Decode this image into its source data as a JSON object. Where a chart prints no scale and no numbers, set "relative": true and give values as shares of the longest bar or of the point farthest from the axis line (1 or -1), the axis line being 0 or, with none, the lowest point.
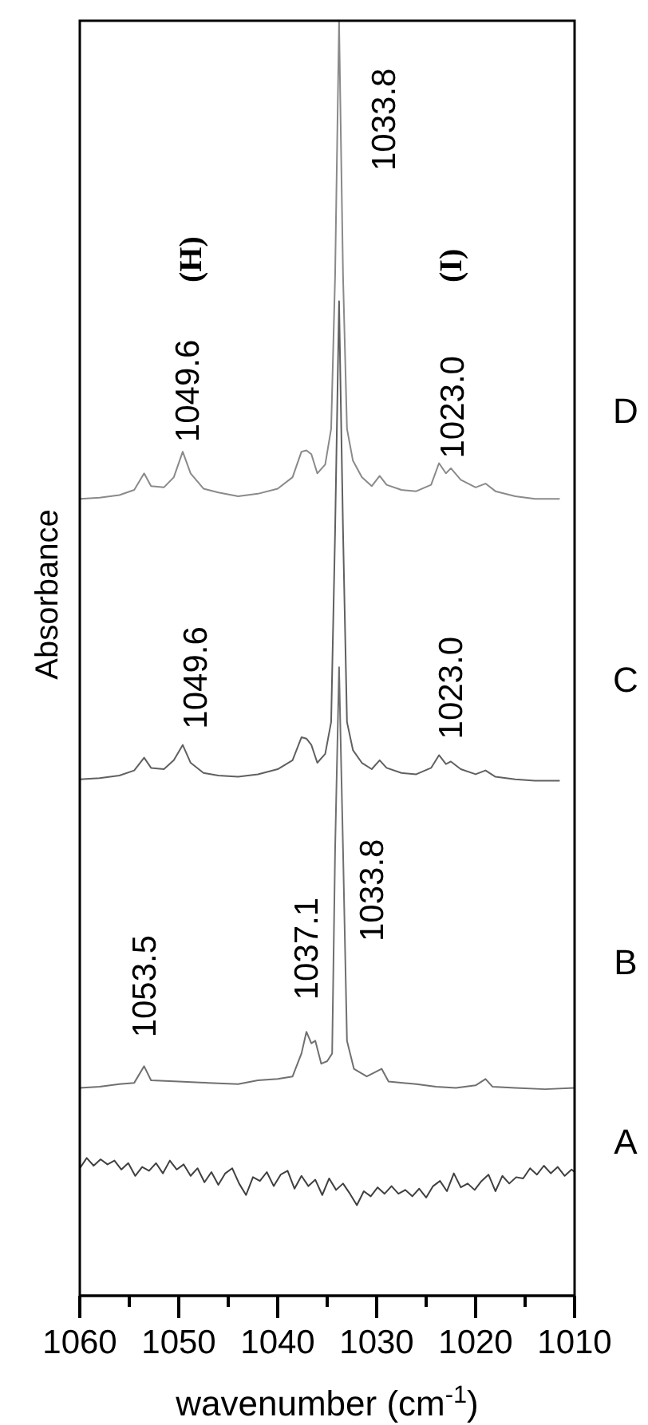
{
  "chart_data": {
    "type": "line",
    "relative": true,
    "xlabel": "wavenumber (cm$^{-1}$)",
    "ylabel": "Absorbance",
    "xlim": [
      1060,
      1010
    ],
    "xticks": [
      1060,
      {
        "value": 1055,
        "label": null
      },
      1050,
      {
        "value": 1045,
        "label": null
      },
      1040,
      {
        "value": 1035,
        "label": null
      },
      1030,
      {
        "value": 1025,
        "label": null
      },
      1020,
      {
        "value": 1015,
        "label": null
      },
      1010
    ],
    "grid": false,
    "legend": false,
    "series": [
      {
        "name": "A",
        "color": "#404040",
        "x": [
          1060,
          1059.3,
          1058.6,
          1057.9,
          1057.2,
          1056.5,
          1055.8,
          1055.1,
          1054.4,
          1053.7,
          1053,
          1052.3,
          1051.6,
          1050.9,
          1050.2,
          1049.5,
          1048.8,
          1048.1,
          1047.4,
          1046.7,
          1046,
          1045.3,
          1044.6,
          1043.9,
          1043.2,
          1042.5,
          1041.8,
          1041.1,
          1040.4,
          1039.7,
          1039,
          1038.3,
          1037.6,
          1036.9,
          1036.2,
          1035.5,
          1034.8,
          1034.1,
          1033.4,
          1032.7,
          1032,
          1031.3,
          1030.6,
          1029.9,
          1029.2,
          1028.5,
          1027.8,
          1027.1,
          1026.4,
          1025.7,
          1025,
          1024.3,
          1023.6,
          1022.9,
          1022.2,
          1021.5,
          1020.8,
          1020.1,
          1019.4,
          1018.7,
          1018,
          1017.3,
          1016.6,
          1015.9,
          1015.2,
          1014.5,
          1013.8,
          1013.1,
          1012.4,
          1011.7,
          1011,
          1010.3,
          1010
        ],
        "values": [
          0.1,
          0.108,
          0.102,
          0.107,
          0.103,
          0.106,
          0.099,
          0.104,
          0.094,
          0.101,
          0.098,
          0.104,
          0.096,
          0.106,
          0.099,
          0.103,
          0.094,
          0.1,
          0.089,
          0.097,
          0.087,
          0.096,
          0.1,
          0.088,
          0.079,
          0.093,
          0.09,
          0.097,
          0.086,
          0.095,
          0.098,
          0.084,
          0.094,
          0.086,
          0.091,
          0.079,
          0.092,
          0.083,
          0.088,
          0.08,
          0.071,
          0.082,
          0.078,
          0.085,
          0.08,
          0.086,
          0.08,
          0.083,
          0.078,
          0.084,
          0.077,
          0.086,
          0.09,
          0.082,
          0.096,
          0.085,
          0.088,
          0.083,
          0.09,
          0.095,
          0.082,
          0.094,
          0.088,
          0.093,
          0.092,
          0.1,
          0.095,
          0.102,
          0.096,
          0.101,
          0.094,
          0.099,
          0.097
        ]
      },
      {
        "name": "B",
        "color": "#707070",
        "x": [
          1060,
          1058,
          1056,
          1054.5,
          1053.5,
          1052.8,
          1050,
          1047,
          1044,
          1042,
          1040,
          1038.5,
          1037.6,
          1037.1,
          1036.6,
          1036.2,
          1035.6,
          1035,
          1034.5,
          1034.2,
          1033.8,
          1033.4,
          1033,
          1032.3,
          1031,
          1029.5,
          1028.8,
          1026,
          1024,
          1022,
          1020,
          1019,
          1018.3,
          1016,
          1013,
          1010
        ],
        "values": [
          0.163,
          0.164,
          0.166,
          0.167,
          0.18,
          0.169,
          0.168,
          0.167,
          0.166,
          0.169,
          0.17,
          0.172,
          0.19,
          0.207,
          0.198,
          0.2,
          0.182,
          0.184,
          0.19,
          0.35,
          0.493,
          0.35,
          0.2,
          0.178,
          0.172,
          0.178,
          0.168,
          0.166,
          0.164,
          0.163,
          0.165,
          0.17,
          0.164,
          0.163,
          0.162,
          0.163
        ]
      },
      {
        "name": "C",
        "color": "#606060",
        "x": [
          1060,
          1058,
          1056,
          1054.5,
          1053.5,
          1052.8,
          1051.5,
          1050.5,
          1049.6,
          1048.8,
          1047.5,
          1046,
          1044,
          1042,
          1040,
          1038.5,
          1037.6,
          1037.1,
          1036.6,
          1036,
          1035.2,
          1034.6,
          1034.2,
          1033.8,
          1033.4,
          1033,
          1032.4,
          1031.5,
          1030.5,
          1029.7,
          1029,
          1027.5,
          1026,
          1024.5,
          1023.7,
          1023,
          1022.5,
          1021.5,
          1020,
          1019,
          1018,
          1016,
          1014,
          1011.5
        ],
        "values": [
          0.405,
          0.406,
          0.408,
          0.412,
          0.422,
          0.414,
          0.413,
          0.42,
          0.432,
          0.418,
          0.41,
          0.408,
          0.407,
          0.409,
          0.413,
          0.42,
          0.438,
          0.437,
          0.432,
          0.418,
          0.425,
          0.45,
          0.6,
          0.78,
          0.6,
          0.45,
          0.428,
          0.418,
          0.413,
          0.42,
          0.414,
          0.41,
          0.409,
          0.414,
          0.424,
          0.417,
          0.419,
          0.413,
          0.409,
          0.412,
          0.407,
          0.405,
          0.404,
          0.404
        ]
      },
      {
        "name": "D",
        "color": "#8a8a8a",
        "x": [
          1060,
          1058,
          1056,
          1054.5,
          1053.5,
          1052.8,
          1051.5,
          1050.5,
          1049.6,
          1048.8,
          1047.5,
          1046,
          1044,
          1042,
          1040,
          1038.5,
          1037.6,
          1037.1,
          1036.6,
          1036,
          1035.2,
          1034.6,
          1034.2,
          1033.8,
          1033.4,
          1033,
          1032.4,
          1031.5,
          1030.5,
          1029.7,
          1029,
          1027.5,
          1026,
          1024.5,
          1023.7,
          1023,
          1022.5,
          1021.5,
          1020,
          1019,
          1018,
          1016,
          1014,
          1011.5
        ],
        "values": [
          0.625,
          0.626,
          0.628,
          0.632,
          0.645,
          0.635,
          0.634,
          0.642,
          0.662,
          0.645,
          0.633,
          0.63,
          0.627,
          0.629,
          0.633,
          0.642,
          0.662,
          0.663,
          0.66,
          0.645,
          0.652,
          0.68,
          0.8,
          1.0,
          0.8,
          0.68,
          0.655,
          0.642,
          0.635,
          0.643,
          0.636,
          0.632,
          0.631,
          0.636,
          0.653,
          0.645,
          0.649,
          0.64,
          0.634,
          0.637,
          0.631,
          0.627,
          0.625,
          0.625
        ]
      }
    ],
    "annotations": [
      {
        "text": "1033.8",
        "x": 1033.8,
        "y": 1.0
      },
      {
        "text": "1049.6",
        "x": 1049.6,
        "y": 0.662
      },
      "(H)",
      {
        "text": "1023.0",
        "x": 1023.0,
        "y": 0.653
      },
      "(I)",
      {
        "text": "1049.6",
        "x": 1049.6,
        "y": 0.432
      },
      {
        "text": "1023.0",
        "x": 1023.0,
        "y": 0.424
      },
      {
        "text": "1053.5",
        "x": 1053.5,
        "y": 0.18
      },
      {
        "text": "1037.1",
        "x": 1037.1,
        "y": 0.207
      },
      "1033.8"
    ]
  }
}
